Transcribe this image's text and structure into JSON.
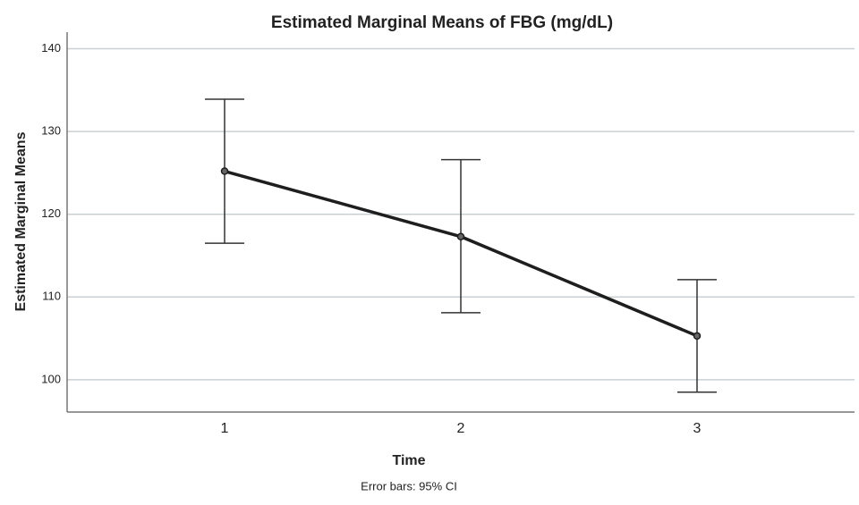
{
  "chart_data": {
    "type": "line",
    "title": "Estimated Marginal Means of FBG (mg/dL)",
    "x_label": "Time",
    "y_label": "Estimated Marginal Means",
    "note": "Error bars: 95% CI",
    "categories": [
      "1",
      "2",
      "3"
    ],
    "series": [
      {
        "color": "#1e1e1e",
        "error_color": "#333333",
        "values": [
          125.2,
          117.3,
          105.3
        ],
        "lower": [
          116.5,
          108.1,
          98.5
        ],
        "upper": [
          133.9,
          126.6,
          112.1
        ]
      }
    ],
    "ylim": [
      96.1,
      142
    ],
    "yticks": [
      100,
      110,
      120,
      130,
      140
    ],
    "grid": true
  }
}
